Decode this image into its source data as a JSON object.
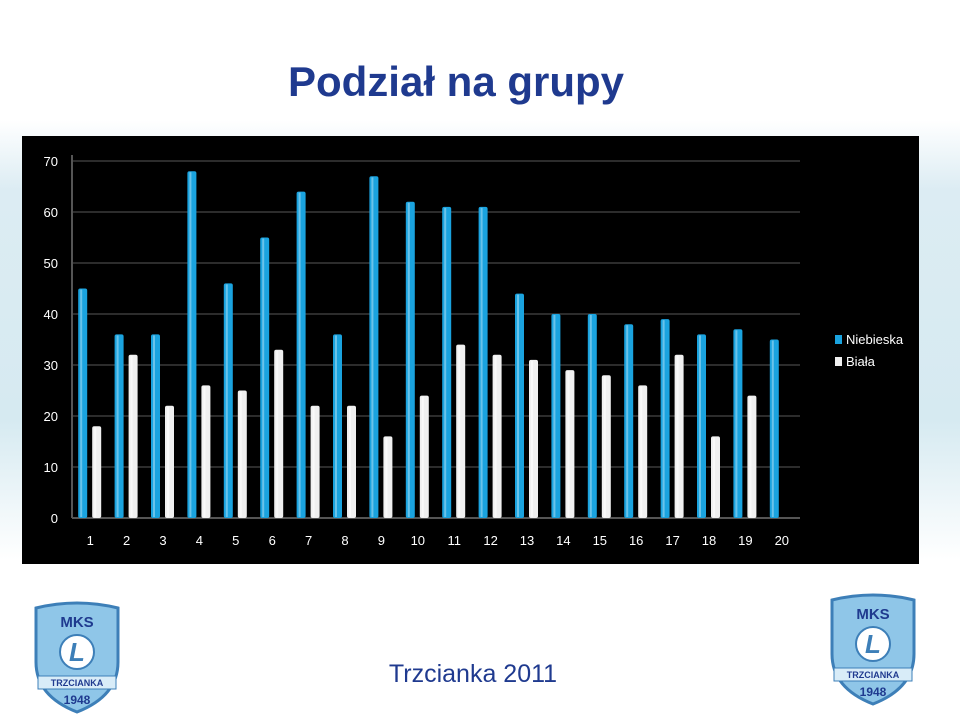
{
  "slide": {
    "title": "Podział na grupy",
    "footer": "Trzcianka 2011"
  },
  "logo": {
    "top_text": "MKS",
    "letter": "L",
    "band_text": "TRZCIANKA",
    "year": "1948"
  },
  "colors": {
    "title": "#1f3a8f",
    "panel_bg": "#000000",
    "series_blue": "#1aa3df",
    "series_white": "#f0f0f0"
  },
  "chart_data": {
    "type": "bar",
    "categories": [
      "1",
      "2",
      "3",
      "4",
      "5",
      "6",
      "7",
      "8",
      "9",
      "10",
      "11",
      "12",
      "13",
      "14",
      "15",
      "16",
      "17",
      "18",
      "19",
      "20"
    ],
    "series": [
      {
        "name": "Niebieska",
        "values": [
          45,
          36,
          36,
          68,
          46,
          55,
          64,
          36,
          67,
          62,
          61,
          61,
          44,
          40,
          40,
          38,
          39,
          36,
          37,
          35
        ]
      },
      {
        "name": "Biała",
        "values": [
          18,
          32,
          22,
          26,
          25,
          33,
          22,
          22,
          16,
          24,
          34,
          32,
          31,
          29,
          28,
          26,
          32,
          16,
          24,
          null
        ]
      }
    ],
    "ylim": [
      0,
      70
    ],
    "yticks": [
      "0",
      "10",
      "20",
      "30",
      "40",
      "50",
      "60",
      "70"
    ],
    "grid": true,
    "legend": "right",
    "xlabel": "",
    "ylabel": ""
  }
}
